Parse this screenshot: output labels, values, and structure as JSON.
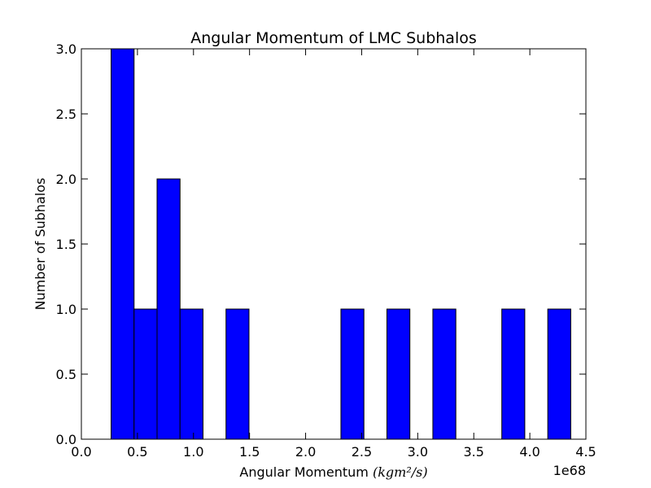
{
  "chart_data": {
    "type": "bar",
    "title": "Angular Momentum of LMC Subhalos",
    "xlabel": "Angular Momentum",
    "xlabel_unit": "(kgm²/s)",
    "ylabel": "Number of Subhalos",
    "x_scale_note": "1e68",
    "xlim": [
      0.0,
      4.5
    ],
    "ylim": [
      0.0,
      3.0
    ],
    "xticks": [
      "0.0",
      "0.5",
      "1.0",
      "1.5",
      "2.0",
      "2.5",
      "3.0",
      "3.5",
      "4.0",
      "4.5"
    ],
    "yticks": [
      "0.0",
      "0.5",
      "1.0",
      "1.5",
      "2.0",
      "2.5",
      "3.0"
    ],
    "grid": false,
    "bar_color": "#0000ff",
    "edge_color": "#000000",
    "bins": [
      {
        "x0": 0.265,
        "x1": 0.47,
        "count": 3
      },
      {
        "x0": 0.47,
        "x1": 0.675,
        "count": 1
      },
      {
        "x0": 0.675,
        "x1": 0.88,
        "count": 2
      },
      {
        "x0": 0.88,
        "x1": 1.085,
        "count": 1
      },
      {
        "x0": 1.29,
        "x1": 1.495,
        "count": 1
      },
      {
        "x0": 2.315,
        "x1": 2.52,
        "count": 1
      },
      {
        "x0": 2.725,
        "x1": 2.93,
        "count": 1
      },
      {
        "x0": 3.135,
        "x1": 3.34,
        "count": 1
      },
      {
        "x0": 3.75,
        "x1": 3.955,
        "count": 1
      },
      {
        "x0": 4.16,
        "x1": 4.365,
        "count": 1
      }
    ]
  }
}
